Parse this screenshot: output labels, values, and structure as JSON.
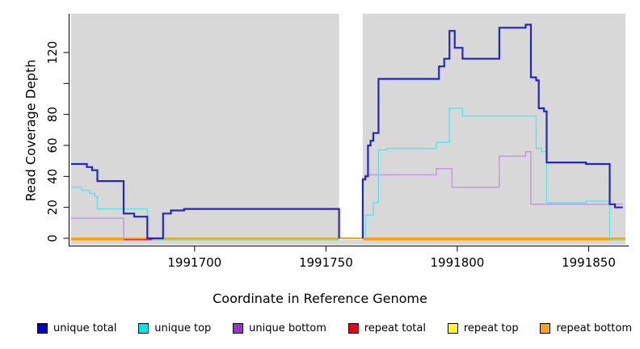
{
  "figure": {
    "background": "#ffffff",
    "panel_background": "#d8d8d8"
  },
  "chart_data": {
    "type": "line",
    "subtype": "step",
    "title": "",
    "xlabel": "Coordinate in Reference Genome",
    "ylabel": "Read Coverage Depth",
    "x_domain": [
      1991653,
      1991864
    ],
    "y_domain": [
      0,
      145
    ],
    "grid": "off",
    "legend_position": "bottom",
    "x_ticks": [
      {
        "value": 1991700,
        "label": "1991700"
      },
      {
        "value": 1991750,
        "label": "1991750"
      },
      {
        "value": 1991800,
        "label": "1991800"
      },
      {
        "value": 1991850,
        "label": "1991850"
      }
    ],
    "y_ticks": [
      {
        "value": 0,
        "label": "0"
      },
      {
        "value": 20,
        "label": "20"
      },
      {
        "value": 40,
        "label": "40"
      },
      {
        "value": 60,
        "label": "60"
      },
      {
        "value": 80,
        "label": "80"
      },
      {
        "value": 100,
        "label": ""
      },
      {
        "value": 120,
        "label": "120"
      }
    ],
    "gap_region": {
      "x_start": 1991755,
      "x_end": 1991764,
      "color": "#ffffff"
    },
    "series": [
      {
        "name": "repeat total",
        "color": "#cc3355",
        "line_width": 1.6,
        "segments": [
          [
            [
              1991653,
              0
            ],
            [
              1991864,
              0
            ]
          ]
        ]
      },
      {
        "name": "repeat top",
        "color": "#ffff00",
        "line_width": 1.6,
        "segments": [
          [
            [
              1991653,
              0
            ],
            [
              1991864,
              0
            ]
          ]
        ]
      },
      {
        "name": "repeat bottom",
        "color": "#ff9f00",
        "line_width": 1.8,
        "segments": [
          [
            [
              1991653,
              0
            ],
            [
              1991864,
              0
            ]
          ]
        ]
      },
      {
        "name": "unique bottom",
        "color": "#c29ae2",
        "line_width": 1.5,
        "segments": [
          [
            [
              1991653,
              13
            ],
            [
              1991673,
              0
            ]
          ],
          [
            [
              1991764,
              0
            ],
            [
              1991764,
              39
            ],
            [
              1991765,
              41
            ],
            [
              1991792,
              45
            ],
            [
              1991798,
              33
            ],
            [
              1991816,
              53
            ],
            [
              1991826,
              56
            ],
            [
              1991828,
              22
            ],
            [
              1991863,
              22
            ]
          ]
        ]
      },
      {
        "name": "unique top",
        "color": "#5ce6ec",
        "line_width": 1.5,
        "segments": [
          [
            [
              1991653,
              33
            ],
            [
              1991657,
              31
            ],
            [
              1991660,
              29
            ],
            [
              1991662,
              27
            ],
            [
              1991663,
              19
            ],
            [
              1991682,
              0
            ]
          ],
          [
            [
              1991765,
              0
            ],
            [
              1991765,
              15
            ],
            [
              1991768,
              23
            ],
            [
              1991770,
              57
            ],
            [
              1991773,
              58
            ],
            [
              1991792,
              62
            ],
            [
              1991797,
              84
            ],
            [
              1991802,
              79
            ],
            [
              1991830,
              58
            ],
            [
              1991832,
              56
            ],
            [
              1991834,
              23
            ],
            [
              1991849,
              24
            ],
            [
              1991858,
              0
            ]
          ]
        ]
      },
      {
        "name": "unique total",
        "color": "#2424cd",
        "line_width": 2.2,
        "segments": [
          [
            [
              1991653,
              48
            ],
            [
              1991659,
              46
            ],
            [
              1991661,
              44
            ],
            [
              1991663,
              37
            ],
            [
              1991673,
              16
            ],
            [
              1991677,
              14
            ],
            [
              1991682,
              0
            ],
            [
              1991688,
              16
            ],
            [
              1991691,
              18
            ],
            [
              1991696,
              19
            ],
            [
              1991755,
              0
            ]
          ],
          [
            [
              1991764,
              0
            ],
            [
              1991764,
              38
            ],
            [
              1991765,
              40
            ],
            [
              1991766,
              60
            ],
            [
              1991767,
              63
            ],
            [
              1991768,
              68
            ],
            [
              1991770,
              103
            ],
            [
              1991793,
              111
            ],
            [
              1991795,
              116
            ],
            [
              1991797,
              134
            ],
            [
              1991799,
              123
            ],
            [
              1991802,
              116
            ],
            [
              1991816,
              136
            ],
            [
              1991826,
              138
            ],
            [
              1991828,
              104
            ],
            [
              1991830,
              102
            ],
            [
              1991831,
              84
            ],
            [
              1991833,
              82
            ],
            [
              1991834,
              49
            ],
            [
              1991849,
              48
            ],
            [
              1991858,
              22
            ],
            [
              1991860,
              20
            ],
            [
              1991863,
              20
            ]
          ]
        ]
      }
    ],
    "baseline_segments": [
      {
        "x_start": 1991653,
        "x_end": 1991673,
        "color": "#ff9f00"
      },
      {
        "x_start": 1991673,
        "x_end": 1991684,
        "color": "#cc3355"
      },
      {
        "x_start": 1991684,
        "x_end": 1991755,
        "color": "#8fd48f"
      },
      {
        "x_start": 1991764,
        "x_end": 1991858,
        "color": "#ff9f00"
      },
      {
        "x_start": 1991858,
        "x_end": 1991864,
        "color": "#8fd48f"
      }
    ]
  },
  "legend": {
    "items": [
      {
        "label": "unique total",
        "color": "#0000dd"
      },
      {
        "label": "unique top",
        "color": "#00e5e5"
      },
      {
        "label": "unique bottom",
        "color": "#9933cc"
      },
      {
        "label": "repeat total",
        "color": "#ee0011"
      },
      {
        "label": "repeat top",
        "color": "#ffff00"
      },
      {
        "label": "repeat bottom",
        "color": "#ffa500"
      }
    ]
  }
}
